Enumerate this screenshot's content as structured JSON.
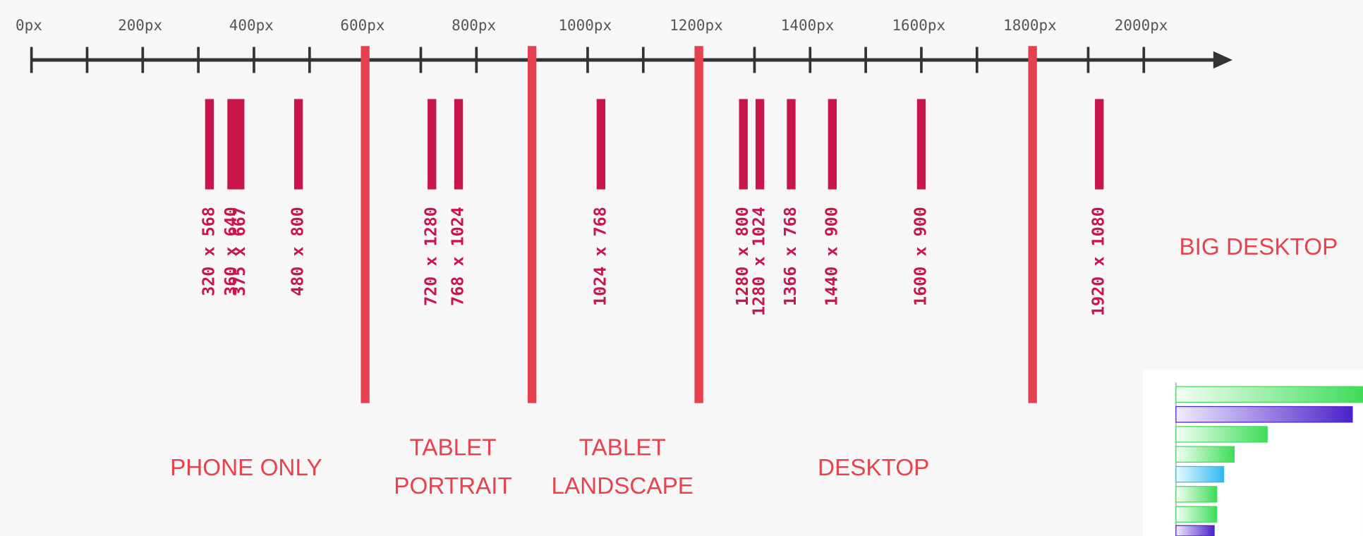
{
  "axis": {
    "ticks": [
      0,
      100,
      200,
      300,
      400,
      500,
      600,
      700,
      800,
      900,
      1000,
      1100,
      1200,
      1300,
      1400,
      1500,
      1600,
      1700,
      1800,
      1900,
      2000
    ],
    "tick_labels": [
      {
        "value": 0,
        "label": "0px"
      },
      {
        "value": 200,
        "label": "200px"
      },
      {
        "value": 400,
        "label": "400px"
      },
      {
        "value": 600,
        "label": "600px"
      },
      {
        "value": 800,
        "label": "800px"
      },
      {
        "value": 1000,
        "label": "1000px"
      },
      {
        "value": 1200,
        "label": "1200px"
      },
      {
        "value": 1400,
        "label": "1400px"
      },
      {
        "value": 1600,
        "label": "1600px"
      },
      {
        "value": 1800,
        "label": "1800px"
      },
      {
        "value": 2000,
        "label": "2000px"
      }
    ]
  },
  "breakpoints": [
    600,
    900,
    1200,
    1800
  ],
  "devices": [
    {
      "label": "320 x 568",
      "width": 320
    },
    {
      "label": "360 x 640",
      "width": 360
    },
    {
      "label": "375 x 667",
      "width": 375
    },
    {
      "label": "480 x 800",
      "width": 480
    },
    {
      "label": "720 x 1280",
      "width": 720
    },
    {
      "label": "768 x 1024",
      "width": 768
    },
    {
      "label": "1024 x 768",
      "width": 1024
    },
    {
      "label": "1280 x 800",
      "width": 1280
    },
    {
      "label": "1280 x 1024",
      "width": 1280
    },
    {
      "label": "1366 x 768",
      "width": 1366
    },
    {
      "label": "1440 x 900",
      "width": 1440
    },
    {
      "label": "1600 x 900",
      "width": 1600
    },
    {
      "label": "1920 x 1080",
      "width": 1920
    }
  ],
  "categories": [
    [
      "PHONE ONLY"
    ],
    [
      "TABLET",
      "PORTRAIT"
    ],
    [
      "TABLET",
      "LANDSCAPE"
    ],
    [
      "DESKTOP"
    ],
    [
      "BIG DESKTOP"
    ]
  ]
}
